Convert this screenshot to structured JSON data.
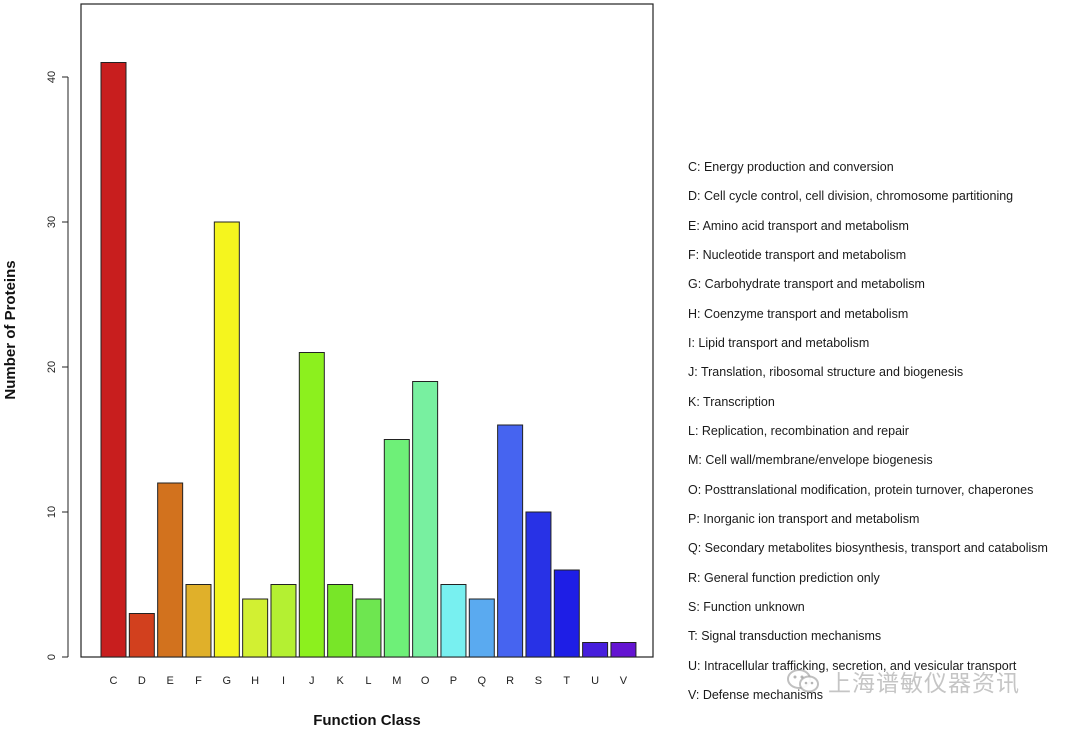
{
  "chart_data": {
    "type": "bar",
    "title": "",
    "xlabel": "Function Class",
    "ylabel": "Number of Proteins",
    "ylim": [
      0,
      45
    ],
    "yticks": [
      0,
      10,
      20,
      30,
      40
    ],
    "grid": false,
    "categories": [
      "C",
      "D",
      "E",
      "F",
      "G",
      "H",
      "I",
      "J",
      "K",
      "L",
      "M",
      "O",
      "P",
      "Q",
      "R",
      "S",
      "T",
      "U",
      "V"
    ],
    "values": [
      41,
      3,
      12,
      5,
      30,
      4,
      5,
      21,
      5,
      4,
      15,
      19,
      5,
      4,
      16,
      10,
      6,
      1,
      1
    ],
    "colors": [
      "#c81e1e",
      "#d2401e",
      "#d2721e",
      "#e0b02a",
      "#f5f51e",
      "#d2f032",
      "#b4f032",
      "#8cf01e",
      "#78e628",
      "#6ee650",
      "#6ef078",
      "#78f0a0",
      "#78f0f0",
      "#5aaaf0",
      "#4664f0",
      "#2832e6",
      "#1e1ee6",
      "#461edc",
      "#6414d2"
    ],
    "legend": [
      "C: Energy production and conversion",
      "D: Cell cycle control, cell division, chromosome partitioning",
      "E: Amino acid transport and metabolism",
      "F: Nucleotide transport and metabolism",
      "G: Carbohydrate transport and metabolism",
      "H: Coenzyme transport and metabolism",
      "I: Lipid transport and metabolism",
      "J: Translation, ribosomal structure and biogenesis",
      "K: Transcription",
      "L: Replication, recombination and repair",
      "M: Cell wall/membrane/envelope biogenesis",
      "O: Posttranslational modification, protein turnover, chaperones",
      "P: Inorganic ion transport and metabolism",
      "Q: Secondary metabolites biosynthesis, transport and catabolism",
      "R: General function prediction only",
      "S: Function unknown",
      "T: Signal transduction mechanisms",
      "U: Intracellular trafficking, secretion, and vesicular transport",
      "V: Defense mechanisms"
    ]
  },
  "watermark": {
    "text": "上海谱敏仪器资讯",
    "icon": "wechat-icon"
  }
}
